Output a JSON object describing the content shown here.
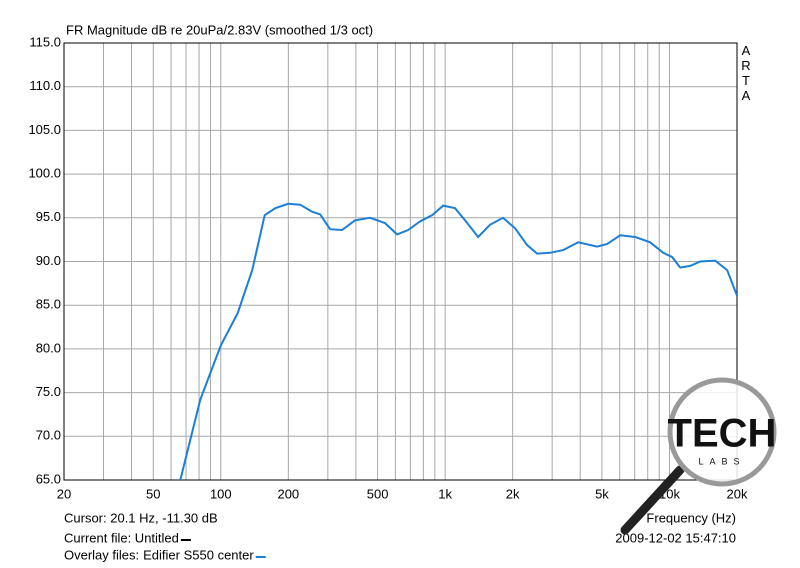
{
  "chart_data": {
    "type": "line",
    "title": "FR Magnitude dB re 20uPa/2.83V (smoothed 1/3 oct)",
    "side_label": "ARTA",
    "xlabel": "Frequency (Hz)",
    "xscale": "log",
    "xlim": [
      20,
      20000
    ],
    "ylim": [
      65,
      115
    ],
    "xticks": [
      20,
      50,
      100,
      200,
      500,
      {
        "value": 1000,
        "label": "1k"
      },
      {
        "value": 2000,
        "label": "2k"
      },
      {
        "value": 5000,
        "label": "5k"
      },
      {
        "value": 10000,
        "label": "10k"
      },
      {
        "value": 20000,
        "label": "20k"
      }
    ],
    "xgrid": [
      30,
      40,
      60,
      70,
      80,
      90,
      300,
      400,
      600,
      700,
      800,
      900,
      3000,
      4000,
      6000,
      7000,
      8000,
      9000
    ],
    "yticks": [
      {
        "value": 65,
        "label": "65.0"
      },
      {
        "value": 70,
        "label": "70.0"
      },
      {
        "value": 75,
        "label": "75.0"
      },
      {
        "value": 80,
        "label": "80.0"
      },
      {
        "value": 85,
        "label": "85.0"
      },
      {
        "value": 90,
        "label": "90.0"
      },
      {
        "value": 95,
        "label": "95.0"
      },
      {
        "value": 100,
        "label": "100.0"
      },
      {
        "value": 105,
        "label": "105.0"
      },
      {
        "value": 110,
        "label": "110.0"
      },
      {
        "value": 115,
        "label": "115.0"
      }
    ],
    "grid": true,
    "x": [
      66,
      81,
      100,
      119,
      138,
      157,
      175,
      200,
      226,
      255,
      277,
      307,
      347,
      396,
      462,
      539,
      611,
      684,
      773,
      875,
      980,
      1107,
      1227,
      1403,
      1585,
      1811,
      2050,
      2318,
      2570,
      2938,
      3357,
      3918,
      4758,
      5276,
      6030,
      7034,
      8204,
      9376,
      10280,
      11160,
      12370,
      13710,
      15990,
      18080,
      20000
    ],
    "series": [
      {
        "name": "Edifier S550 center",
        "color": "#1b7fd8",
        "values": [
          65.0,
          74.2,
          80.4,
          84.1,
          89.0,
          95.3,
          96.1,
          96.6,
          96.5,
          95.7,
          95.4,
          93.7,
          93.6,
          94.7,
          95.0,
          94.4,
          93.1,
          93.6,
          94.6,
          95.3,
          96.4,
          96.1,
          94.7,
          92.8,
          94.2,
          95.0,
          93.8,
          91.9,
          90.9,
          91.0,
          91.3,
          92.2,
          91.7,
          92.0,
          93.0,
          92.8,
          92.2,
          91.0,
          90.5,
          89.3,
          89.5,
          90.0,
          90.1,
          89.0,
          86.1
        ]
      }
    ],
    "cursor": "Cursor: 20.1 Hz, -11.30 dB",
    "current_file": "Current file: Untitled",
    "current_file_color": "#000000",
    "overlay_label": "Overlay files:",
    "timestamp": "2009-12-02  15:47:10",
    "watermark": [
      "TECH",
      "LABS"
    ]
  }
}
